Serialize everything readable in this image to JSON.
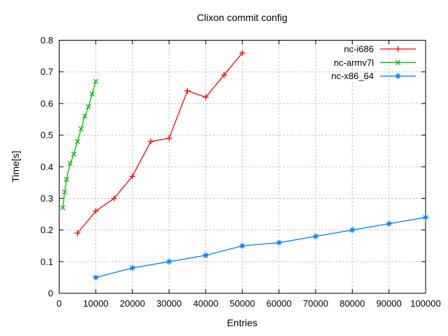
{
  "chart_data": {
    "type": "line",
    "title": "Clixon commit config",
    "xlabel": "Entries",
    "ylabel": "Time[s]",
    "xlim": [
      0,
      100000
    ],
    "ylim": [
      0,
      0.8
    ],
    "xticks": [
      0,
      10000,
      20000,
      30000,
      40000,
      50000,
      60000,
      70000,
      80000,
      90000,
      100000
    ],
    "xtick_labels": [
      "0",
      "10000",
      "20000",
      "30000",
      "40000",
      "50000",
      "60000",
      "70000",
      "80000",
      "90000",
      "100000"
    ],
    "yticks": [
      0,
      0.1,
      0.2,
      0.3,
      0.4,
      0.5,
      0.6,
      0.7,
      0.8
    ],
    "ytick_labels": [
      "0",
      "0.1",
      "0.2",
      "0.3",
      "0.4",
      "0.5",
      "0.6",
      "0.7",
      "0.8"
    ],
    "grid": true,
    "legend": {
      "position": "top-right-inside",
      "entries": [
        "nc-i686",
        "nc-armv7l",
        "nc-x86_64"
      ]
    },
    "series": [
      {
        "name": "nc-i686",
        "color": "#ff0000",
        "marker": "plus",
        "x": [
          5000,
          10000,
          15000,
          20000,
          25000,
          30000,
          35000,
          40000,
          45000,
          50000
        ],
        "y": [
          0.19,
          0.26,
          0.3,
          0.37,
          0.48,
          0.49,
          0.64,
          0.62,
          0.69,
          0.76
        ]
      },
      {
        "name": "nc-armv7l",
        "color": "#00c000",
        "marker": "cross",
        "x": [
          1000,
          1500,
          2000,
          3000,
          4000,
          5000,
          6000,
          7000,
          8000,
          9000,
          10000
        ],
        "y": [
          0.27,
          0.32,
          0.36,
          0.41,
          0.44,
          0.48,
          0.52,
          0.56,
          0.59,
          0.63,
          0.67
        ]
      },
      {
        "name": "nc-x86_64",
        "color": "#0080ff",
        "marker": "asterisk",
        "x": [
          10000,
          20000,
          30000,
          40000,
          50000,
          60000,
          70000,
          80000,
          90000,
          100000
        ],
        "y": [
          0.05,
          0.08,
          0.1,
          0.12,
          0.15,
          0.16,
          0.18,
          0.2,
          0.22,
          0.24
        ]
      }
    ]
  },
  "style": {
    "grid_color": "#b0b0b0",
    "border_color": "#000000",
    "text_color": "#000000",
    "background": "#ffffff"
  }
}
